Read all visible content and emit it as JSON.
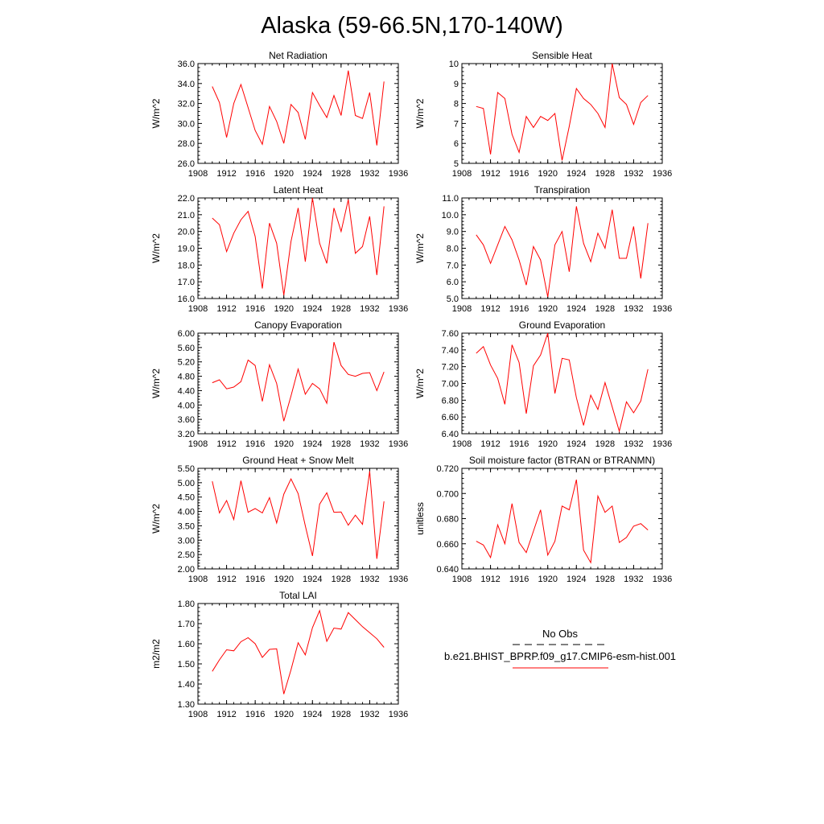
{
  "figure": {
    "title": "Alaska (59-66.5N,170-140W)",
    "line_color": "#ff0000",
    "obs_color": "#000000"
  },
  "legend": {
    "obs_label": "No Obs",
    "model_label": "b.e21.BHIST_BPRP.f09_g17.CMIP6-esm-hist.001"
  },
  "chart_data": [
    {
      "type": "line",
      "title": "Net Radiation",
      "ylabel": "W/m^2",
      "xlim": [
        1908,
        1936
      ],
      "ylim": [
        26,
        36
      ],
      "xticks": [
        1908,
        1912,
        1916,
        1920,
        1924,
        1928,
        1932,
        1936
      ],
      "xtick_labels": [
        "1908",
        "1912",
        "1916",
        "1920",
        "1924",
        "1928",
        "1932",
        "1936"
      ],
      "yticks": [
        26,
        28,
        30,
        32,
        34,
        36
      ],
      "ytick_labels": [
        "26.0",
        "28.0",
        "30.0",
        "32.0",
        "34.0",
        "36.0"
      ],
      "x": [
        1910,
        1911,
        1912,
        1913,
        1914,
        1915,
        1916,
        1917,
        1918,
        1919,
        1920,
        1921,
        1922,
        1923,
        1924,
        1925,
        1926,
        1927,
        1928,
        1929,
        1930,
        1931,
        1932,
        1933,
        1934
      ],
      "series": [
        {
          "name": "b.e21.BHIST_BPRP.f09_g17.CMIP6-esm-hist.001",
          "values": [
            33.7,
            32.1,
            28.6,
            32.0,
            33.9,
            31.6,
            29.3,
            27.9,
            31.7,
            30.2,
            28.0,
            31.9,
            31.1,
            28.4,
            33.1,
            31.8,
            30.6,
            32.8,
            30.8,
            35.3,
            30.8,
            30.5,
            33.1,
            27.8,
            34.2
          ]
        }
      ]
    },
    {
      "type": "line",
      "title": "Sensible Heat",
      "ylabel": "W/m^2",
      "xlim": [
        1908,
        1936
      ],
      "ylim": [
        5,
        10
      ],
      "xticks": [
        1908,
        1912,
        1916,
        1920,
        1924,
        1928,
        1932,
        1936
      ],
      "xtick_labels": [
        "1908",
        "1912",
        "1916",
        "1920",
        "1924",
        "1928",
        "1932",
        "1936"
      ],
      "yticks": [
        5,
        6,
        7,
        8,
        9,
        10
      ],
      "ytick_labels": [
        "5",
        "6",
        "7",
        "8",
        "9",
        "10"
      ],
      "x": [
        1910,
        1911,
        1912,
        1913,
        1914,
        1915,
        1916,
        1917,
        1918,
        1919,
        1920,
        1921,
        1922,
        1923,
        1924,
        1925,
        1926,
        1927,
        1928,
        1929,
        1930,
        1931,
        1932,
        1933,
        1934
      ],
      "series": [
        {
          "name": "b.e21.BHIST_BPRP.f09_g17.CMIP6-esm-hist.001",
          "values": [
            7.85,
            7.75,
            5.45,
            8.55,
            8.25,
            6.45,
            5.55,
            7.35,
            6.8,
            7.35,
            7.15,
            7.5,
            5.15,
            6.85,
            8.75,
            8.25,
            7.95,
            7.5,
            6.8,
            10.0,
            8.3,
            7.95,
            6.95,
            8.05,
            8.4
          ]
        }
      ]
    },
    {
      "type": "line",
      "title": "Latent Heat",
      "ylabel": "W/m^2",
      "xlim": [
        1908,
        1936
      ],
      "ylim": [
        16,
        22
      ],
      "xticks": [
        1908,
        1912,
        1916,
        1920,
        1924,
        1928,
        1932,
        1936
      ],
      "xtick_labels": [
        "1908",
        "1912",
        "1916",
        "1920",
        "1924",
        "1928",
        "1932",
        "1936"
      ],
      "yticks": [
        16,
        17,
        18,
        19,
        20,
        21,
        22
      ],
      "ytick_labels": [
        "16.0",
        "17.0",
        "18.0",
        "19.0",
        "20.0",
        "21.0",
        "22.0"
      ],
      "x": [
        1910,
        1911,
        1912,
        1913,
        1914,
        1915,
        1916,
        1917,
        1918,
        1919,
        1920,
        1921,
        1922,
        1923,
        1924,
        1925,
        1926,
        1927,
        1928,
        1929,
        1930,
        1931,
        1932,
        1933,
        1934
      ],
      "series": [
        {
          "name": "b.e21.BHIST_BPRP.f09_g17.CMIP6-esm-hist.001",
          "values": [
            20.8,
            20.4,
            18.8,
            19.9,
            20.7,
            21.2,
            19.7,
            16.6,
            20.5,
            19.3,
            16.2,
            19.4,
            21.4,
            18.2,
            22.0,
            19.3,
            18.1,
            21.4,
            20.0,
            21.9,
            18.7,
            19.1,
            20.9,
            17.4,
            21.5
          ]
        }
      ]
    },
    {
      "type": "line",
      "title": "Transpiration",
      "ylabel": "W/m^2",
      "xlim": [
        1908,
        1936
      ],
      "ylim": [
        5,
        11
      ],
      "xticks": [
        1908,
        1912,
        1916,
        1920,
        1924,
        1928,
        1932,
        1936
      ],
      "xtick_labels": [
        "1908",
        "1912",
        "1916",
        "1920",
        "1924",
        "1928",
        "1932",
        "1936"
      ],
      "yticks": [
        5,
        6,
        7,
        8,
        9,
        10,
        11
      ],
      "ytick_labels": [
        "5.0",
        "6.0",
        "7.0",
        "8.0",
        "9.0",
        "10.0",
        "11.0"
      ],
      "x": [
        1910,
        1911,
        1912,
        1913,
        1914,
        1915,
        1916,
        1917,
        1918,
        1919,
        1920,
        1921,
        1922,
        1923,
        1924,
        1925,
        1926,
        1927,
        1928,
        1929,
        1930,
        1931,
        1932,
        1933,
        1934
      ],
      "series": [
        {
          "name": "b.e21.BHIST_BPRP.f09_g17.CMIP6-esm-hist.001",
          "values": [
            8.8,
            8.2,
            7.1,
            8.2,
            9.3,
            8.5,
            7.3,
            5.8,
            8.1,
            7.3,
            5.1,
            8.2,
            9.0,
            6.6,
            10.5,
            8.3,
            7.2,
            8.9,
            8.0,
            10.3,
            7.4,
            7.4,
            9.3,
            6.2,
            9.5
          ]
        }
      ]
    },
    {
      "type": "line",
      "title": "Canopy Evaporation",
      "ylabel": "W/m^2",
      "xlim": [
        1908,
        1936
      ],
      "ylim": [
        3.2,
        6.0
      ],
      "xticks": [
        1908,
        1912,
        1916,
        1920,
        1924,
        1928,
        1932,
        1936
      ],
      "xtick_labels": [
        "1908",
        "1912",
        "1916",
        "1920",
        "1924",
        "1928",
        "1932",
        "1936"
      ],
      "yticks": [
        3.2,
        3.6,
        4.0,
        4.4,
        4.8,
        5.2,
        5.6,
        6.0
      ],
      "ytick_labels": [
        "3.20",
        "3.60",
        "4.00",
        "4.40",
        "4.80",
        "5.20",
        "5.60",
        "6.00"
      ],
      "x": [
        1910,
        1911,
        1912,
        1913,
        1914,
        1915,
        1916,
        1917,
        1918,
        1919,
        1920,
        1921,
        1922,
        1923,
        1924,
        1925,
        1926,
        1927,
        1928,
        1929,
        1930,
        1931,
        1932,
        1933,
        1934
      ],
      "series": [
        {
          "name": "b.e21.BHIST_BPRP.f09_g17.CMIP6-esm-hist.001",
          "values": [
            4.62,
            4.7,
            4.45,
            4.5,
            4.65,
            5.25,
            5.1,
            4.1,
            5.12,
            4.6,
            3.55,
            4.25,
            5.0,
            4.3,
            4.6,
            4.45,
            4.05,
            5.75,
            5.1,
            4.85,
            4.8,
            4.88,
            4.9,
            4.4,
            4.92
          ]
        }
      ]
    },
    {
      "type": "line",
      "title": "Ground Evaporation",
      "ylabel": "W/m^2",
      "xlim": [
        1908,
        1936
      ],
      "ylim": [
        6.4,
        7.6
      ],
      "xticks": [
        1908,
        1912,
        1916,
        1920,
        1924,
        1928,
        1932,
        1936
      ],
      "xtick_labels": [
        "1908",
        "1912",
        "1916",
        "1920",
        "1924",
        "1928",
        "1932",
        "1936"
      ],
      "yticks": [
        6.4,
        6.6,
        6.8,
        7.0,
        7.2,
        7.4,
        7.6
      ],
      "ytick_labels": [
        "6.40",
        "6.60",
        "6.80",
        "7.00",
        "7.20",
        "7.40",
        "7.60"
      ],
      "x": [
        1910,
        1911,
        1912,
        1913,
        1914,
        1915,
        1916,
        1917,
        1918,
        1919,
        1920,
        1921,
        1922,
        1923,
        1924,
        1925,
        1926,
        1927,
        1928,
        1929,
        1930,
        1931,
        1932,
        1933,
        1934
      ],
      "series": [
        {
          "name": "b.e21.BHIST_BPRP.f09_g17.CMIP6-esm-hist.001",
          "values": [
            7.36,
            7.44,
            7.22,
            7.06,
            6.75,
            7.46,
            7.25,
            6.64,
            7.21,
            7.34,
            7.6,
            6.88,
            7.3,
            7.28,
            6.83,
            6.5,
            6.86,
            6.69,
            7.01,
            6.72,
            6.43,
            6.78,
            6.65,
            6.79,
            7.17
          ]
        }
      ]
    },
    {
      "type": "line",
      "title": "Ground Heat + Snow Melt",
      "ylabel": "W/m^2",
      "xlim": [
        1908,
        1936
      ],
      "ylim": [
        2.0,
        5.5
      ],
      "xticks": [
        1908,
        1912,
        1916,
        1920,
        1924,
        1928,
        1932,
        1936
      ],
      "xtick_labels": [
        "1908",
        "1912",
        "1916",
        "1920",
        "1924",
        "1928",
        "1932",
        "1936"
      ],
      "yticks": [
        2.0,
        2.5,
        3.0,
        3.5,
        4.0,
        4.5,
        5.0,
        5.5
      ],
      "ytick_labels": [
        "2.00",
        "2.50",
        "3.00",
        "3.50",
        "4.00",
        "4.50",
        "5.00",
        "5.50"
      ],
      "x": [
        1910,
        1911,
        1912,
        1913,
        1914,
        1915,
        1916,
        1917,
        1918,
        1919,
        1920,
        1921,
        1922,
        1923,
        1924,
        1925,
        1926,
        1927,
        1928,
        1929,
        1930,
        1931,
        1932,
        1933,
        1934
      ],
      "series": [
        {
          "name": "b.e21.BHIST_BPRP.f09_g17.CMIP6-esm-hist.001",
          "values": [
            5.05,
            3.95,
            4.38,
            3.72,
            5.07,
            3.97,
            4.1,
            3.95,
            4.48,
            3.6,
            4.6,
            5.13,
            4.62,
            3.5,
            2.45,
            4.25,
            4.65,
            3.97,
            3.98,
            3.52,
            3.87,
            3.55,
            5.4,
            2.35,
            4.35
          ]
        }
      ]
    },
    {
      "type": "line",
      "title": "Soil moisture factor (BTRAN or BTRANMN)",
      "ylabel": "unitless",
      "xlim": [
        1908,
        1936
      ],
      "ylim": [
        0.64,
        0.72
      ],
      "xticks": [
        1908,
        1912,
        1916,
        1920,
        1924,
        1928,
        1932,
        1936
      ],
      "xtick_labels": [
        "1908",
        "1912",
        "1916",
        "1920",
        "1924",
        "1928",
        "1932",
        "1936"
      ],
      "yticks": [
        0.64,
        0.66,
        0.68,
        0.7,
        0.72
      ],
      "ytick_labels": [
        "0.640",
        "0.660",
        "0.680",
        "0.700",
        "0.720"
      ],
      "x": [
        1910,
        1911,
        1912,
        1913,
        1914,
        1915,
        1916,
        1917,
        1918,
        1919,
        1920,
        1921,
        1922,
        1923,
        1924,
        1925,
        1926,
        1927,
        1928,
        1929,
        1930,
        1931,
        1932,
        1933,
        1934
      ],
      "series": [
        {
          "name": "b.e21.BHIST_BPRP.f09_g17.CMIP6-esm-hist.001",
          "values": [
            0.662,
            0.659,
            0.649,
            0.675,
            0.66,
            0.692,
            0.661,
            0.653,
            0.67,
            0.687,
            0.651,
            0.662,
            0.69,
            0.687,
            0.711,
            0.655,
            0.645,
            0.698,
            0.685,
            0.69,
            0.661,
            0.665,
            0.674,
            0.676,
            0.671
          ]
        }
      ]
    },
    {
      "type": "line",
      "title": "Total LAI",
      "ylabel": "m2/m2",
      "xlim": [
        1908,
        1936
      ],
      "ylim": [
        1.3,
        1.8
      ],
      "xticks": [
        1908,
        1912,
        1916,
        1920,
        1924,
        1928,
        1932,
        1936
      ],
      "xtick_labels": [
        "1908",
        "1912",
        "1916",
        "1920",
        "1924",
        "1928",
        "1932",
        "1936"
      ],
      "yticks": [
        1.3,
        1.4,
        1.5,
        1.6,
        1.7,
        1.8
      ],
      "ytick_labels": [
        "1.30",
        "1.40",
        "1.50",
        "1.60",
        "1.70",
        "1.80"
      ],
      "x": [
        1910,
        1911,
        1912,
        1913,
        1914,
        1915,
        1916,
        1917,
        1918,
        1919,
        1920,
        1921,
        1922,
        1923,
        1924,
        1925,
        1926,
        1927,
        1928,
        1929,
        1930,
        1931,
        1932,
        1933,
        1934
      ],
      "series": [
        {
          "name": "b.e21.BHIST_BPRP.f09_g17.CMIP6-esm-hist.001",
          "values": [
            1.463,
            1.52,
            1.57,
            1.565,
            1.61,
            1.63,
            1.6,
            1.532,
            1.572,
            1.575,
            1.35,
            1.47,
            1.605,
            1.545,
            1.68,
            1.765,
            1.612,
            1.678,
            1.673,
            1.755,
            1.72,
            1.685,
            1.655,
            1.625,
            1.582
          ]
        }
      ]
    }
  ]
}
